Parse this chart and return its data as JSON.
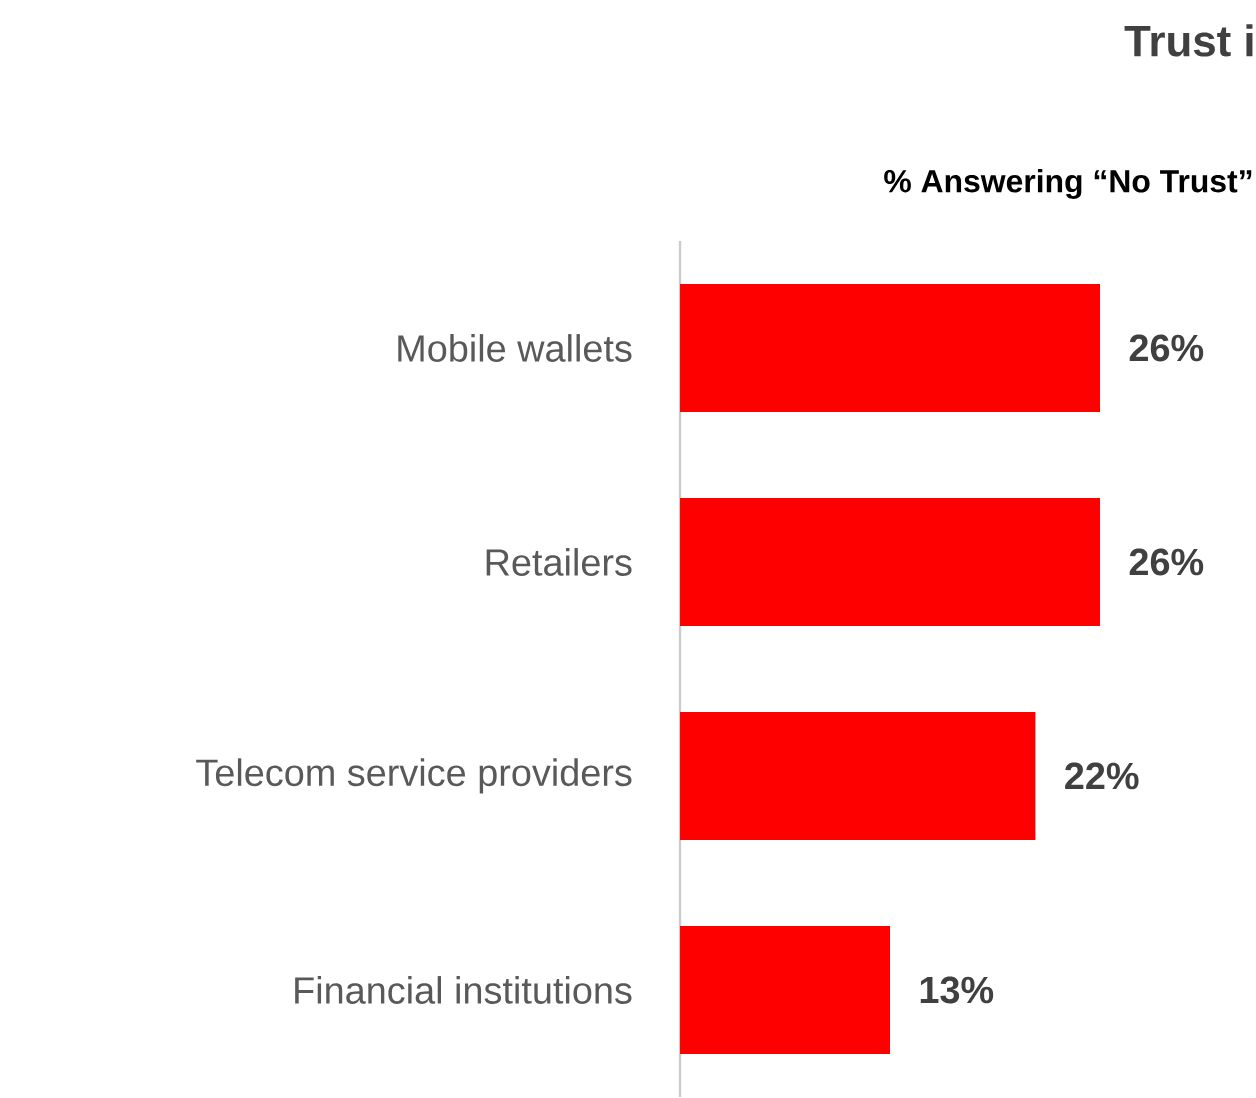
{
  "chart_data": {
    "type": "bar",
    "orientation": "horizontal",
    "title": "Trust i",
    "subtitle": "% Answering “No Trust”",
    "categories": [
      "Mobile wallets",
      "Retailers",
      "Telecom service providers",
      "Financial institutions"
    ],
    "values": [
      26,
      26,
      22,
      13
    ],
    "value_labels": [
      "26%",
      "26%",
      "22%",
      "13%"
    ],
    "color": "#ff0000"
  }
}
